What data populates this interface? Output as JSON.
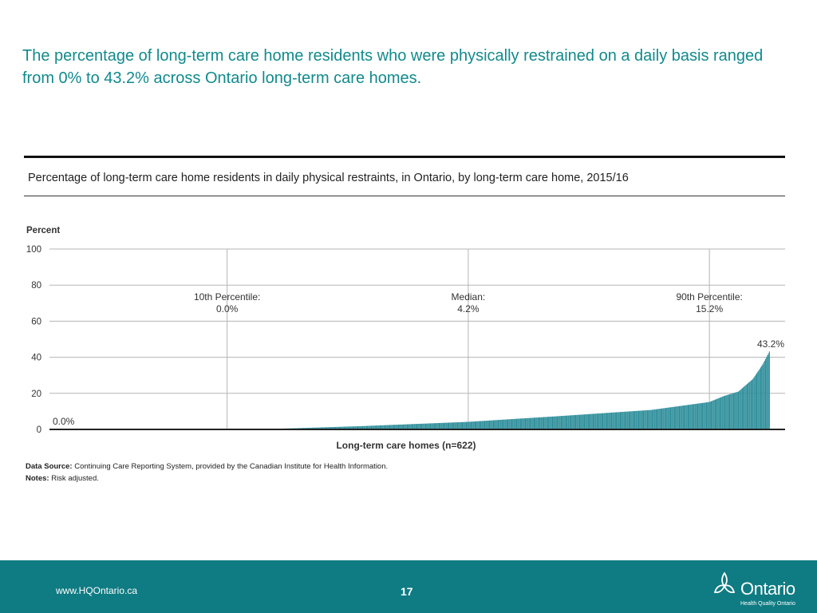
{
  "headline": "The percentage of long-term care home residents who were physically restrained on a daily basis ranged from 0% to 43.2% across Ontario long-term care homes.",
  "chart_title": "Percentage of long-term care home residents in daily physical restraints, in Ontario, by long-term care home, 2015/16",
  "source": {
    "data_label": "Data Source:",
    "data_text": " Continuing Care Reporting System, provided by the Canadian Institute for Health Information.",
    "notes_label": "Notes:",
    "notes_text": " Risk adjusted."
  },
  "footer": {
    "url": "www.HQOntario.ca",
    "page": "17",
    "logo_text": "Ontario",
    "logo_sub": "Health Quality Ontario"
  },
  "colors": {
    "accent": "#128a8c",
    "bar": "#2f8f9b",
    "footer": "#0f7b82"
  },
  "chart_data": {
    "type": "bar",
    "ylabel": "Percent",
    "xlabel": "Long-term care homes (n=622)",
    "ylim": [
      0,
      100
    ],
    "yticks": [
      "0",
      "20",
      "40",
      "60",
      "80",
      "100"
    ],
    "grid": true,
    "n_homes": 622,
    "sorted": "ascending",
    "min_label": "0.0%",
    "max_label": "43.2%",
    "values_anchor": [
      {
        "rank": 1,
        "value": 0.0
      },
      {
        "rank": 100,
        "value": 0.0
      },
      {
        "rank": 110,
        "value": 0.3
      },
      {
        "rank": 200,
        "value": 1.8
      },
      {
        "rank": 311,
        "value": 4.2
      },
      {
        "rank": 400,
        "value": 7.2
      },
      {
        "rank": 500,
        "value": 10.8
      },
      {
        "rank": 560,
        "value": 15.2
      },
      {
        "rank": 575,
        "value": 18.5
      },
      {
        "rank": 590,
        "value": 21.0
      },
      {
        "rank": 605,
        "value": 28.0
      },
      {
        "rank": 615,
        "value": 36.0
      },
      {
        "rank": 622,
        "value": 43.2
      }
    ],
    "annotations": [
      {
        "label": "10th Percentile:",
        "value_text": "0.0%",
        "rank": 62
      },
      {
        "label": "Median:",
        "value_text": "4.2%",
        "rank": 311
      },
      {
        "label": "90th Percentile:",
        "value_text": "15.2%",
        "rank": 560
      }
    ]
  }
}
